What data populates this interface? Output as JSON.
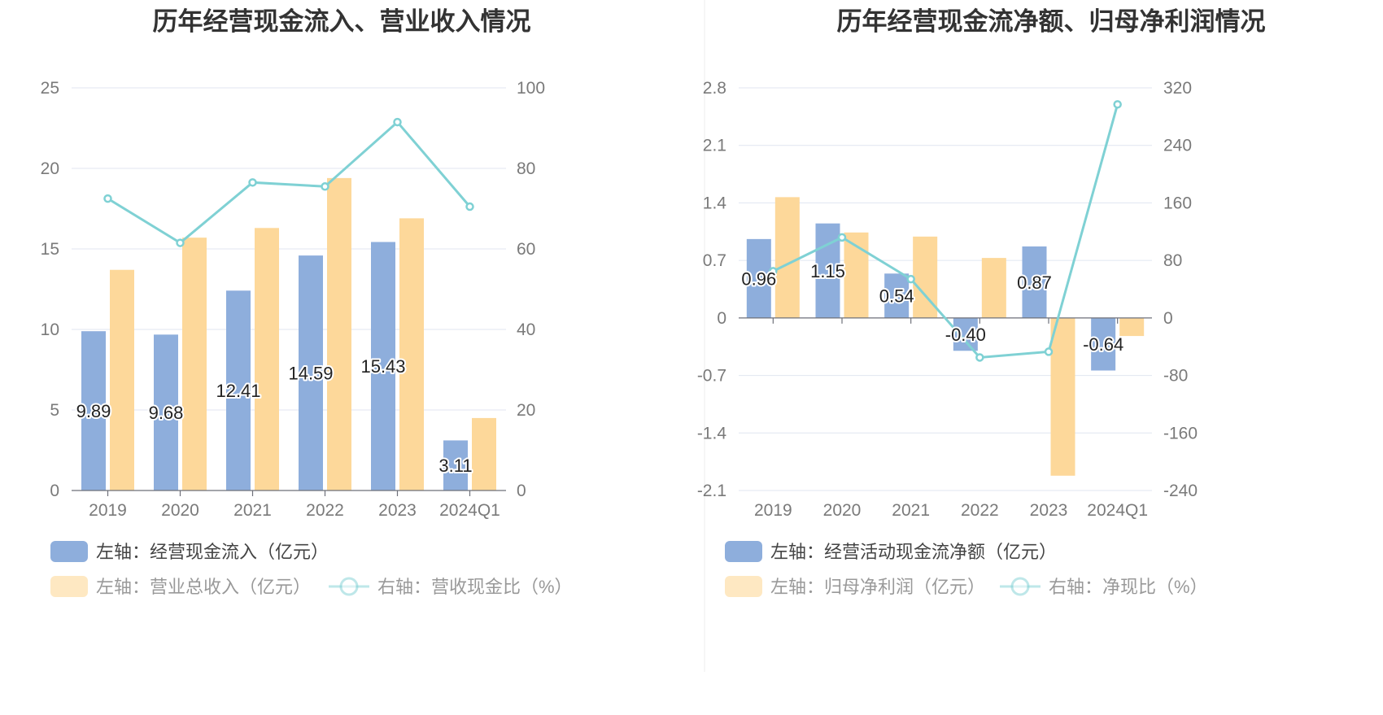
{
  "colors": {
    "blue": "#8eaedc",
    "orange": "#fdd89a",
    "teal": "#7fd1d4",
    "grid": "#e0e6f1",
    "axis": "#6e7079",
    "tick_text": "#7a7a7a",
    "title": "#333333",
    "label_text": "#222222",
    "legend_text": "#444444",
    "legend_dim": "#999999",
    "divider": "#eeeeee"
  },
  "chart_data": [
    {
      "type": "bar",
      "title": "历年经营现金流入、营业收入情况",
      "categories": [
        "2019",
        "2020",
        "2021",
        "2022",
        "2023",
        "2024Q1"
      ],
      "y_left": {
        "min": 0,
        "max": 25,
        "ticks": [
          "0",
          "5",
          "10",
          "15",
          "20",
          "25"
        ]
      },
      "y_right": {
        "min": 0,
        "max": 100,
        "ticks": [
          "0",
          "20",
          "40",
          "60",
          "80",
          "100"
        ]
      },
      "series": [
        {
          "name": "左轴：经营现金流入（亿元）",
          "kind": "bar",
          "axis": "left",
          "color": "blue",
          "values": [
            9.89,
            9.68,
            12.41,
            14.59,
            15.43,
            3.11
          ],
          "labels": [
            "9.89",
            "9.68",
            "12.41",
            "14.59",
            "15.43",
            "3.11"
          ]
        },
        {
          "name": "左轴：营业总收入（亿元）",
          "kind": "bar",
          "axis": "left",
          "color": "orange",
          "values": [
            13.7,
            15.7,
            16.3,
            19.4,
            16.9,
            4.5
          ]
        },
        {
          "name": "右轴：营收现金比（%）",
          "kind": "line",
          "axis": "right",
          "color": "teal",
          "values": [
            72.5,
            61.5,
            76.5,
            75.5,
            91.5,
            70.5
          ]
        }
      ]
    },
    {
      "type": "bar",
      "title": "历年经营现金流净额、归母净利润情况",
      "categories": [
        "2019",
        "2020",
        "2021",
        "2022",
        "2023",
        "2024Q1"
      ],
      "y_left": {
        "min": -2.1,
        "max": 2.8,
        "ticks": [
          "-2.1",
          "-1.4",
          "-0.7",
          "0",
          "0.7",
          "1.4",
          "2.1",
          "2.8"
        ]
      },
      "y_right": {
        "min": -240,
        "max": 320,
        "ticks": [
          "-240",
          "-160",
          "-80",
          "0",
          "80",
          "160",
          "240",
          "320"
        ]
      },
      "series": [
        {
          "name": "左轴：经营活动现金流净额（亿元）",
          "kind": "bar",
          "axis": "left",
          "color": "blue",
          "values": [
            0.96,
            1.15,
            0.54,
            -0.4,
            0.87,
            -0.64
          ],
          "labels": [
            "0.96",
            "1.15",
            "0.54",
            "-0.40",
            "0.87",
            "-0.64"
          ]
        },
        {
          "name": "左轴：归母净利润（亿元）",
          "kind": "bar",
          "axis": "left",
          "color": "orange",
          "values": [
            1.47,
            1.04,
            0.99,
            0.73,
            -1.92,
            -0.22
          ]
        },
        {
          "name": "右轴：净现比（%）",
          "kind": "line",
          "axis": "right",
          "color": "teal",
          "values": [
            65,
            112,
            54,
            -55,
            -47,
            297
          ]
        }
      ]
    }
  ]
}
